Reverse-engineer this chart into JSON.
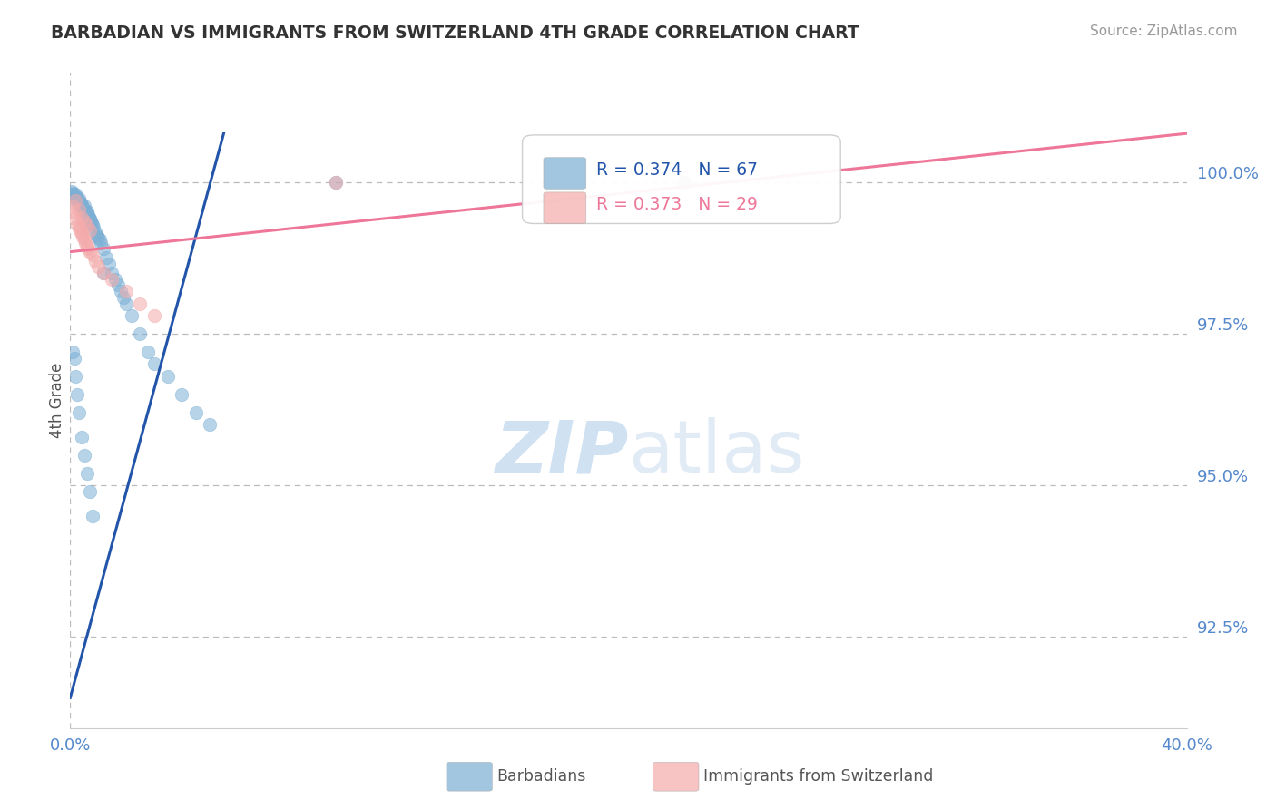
{
  "title": "BARBADIAN VS IMMIGRANTS FROM SWITZERLAND 4TH GRADE CORRELATION CHART",
  "source_text": "Source: ZipAtlas.com",
  "ylabel": "4th Grade",
  "legend_blue_r": "R = 0.374",
  "legend_blue_n": "N = 67",
  "legend_pink_r": "R = 0.373",
  "legend_pink_n": "N = 29",
  "legend_blue_label": "Barbadians",
  "legend_pink_label": "Immigrants from Switzerland",
  "xlim": [
    0.0,
    40.0
  ],
  "ylim": [
    91.0,
    101.8
  ],
  "yticks": [
    92.5,
    95.0,
    97.5,
    100.0
  ],
  "ytick_labels": [
    "92.5%",
    "95.0%",
    "97.5%",
    "100.0%"
  ],
  "xticks": [
    0.0,
    10.0,
    20.0,
    30.0,
    40.0
  ],
  "xtick_labels": [
    "0.0%",
    "",
    "",
    "",
    "40.0%"
  ],
  "blue_color": "#7BAFD4",
  "pink_color": "#F4AAAA",
  "blue_line_color": "#2255AA",
  "pink_line_color": "#EE7799",
  "watermark_color": "#C8DCF0",
  "grid_color": "#BBBBBB",
  "title_color": "#333333",
  "source_color": "#999999",
  "axis_label_color": "#555555",
  "tick_label_color": "#5588CC",
  "blue_scatter_x": [
    0.05,
    0.08,
    0.1,
    0.12,
    0.15,
    0.18,
    0.2,
    0.22,
    0.25,
    0.28,
    0.3,
    0.32,
    0.35,
    0.38,
    0.4,
    0.42,
    0.45,
    0.48,
    0.5,
    0.52,
    0.55,
    0.58,
    0.6,
    0.62,
    0.65,
    0.68,
    0.7,
    0.72,
    0.75,
    0.78,
    0.8,
    0.85,
    0.9,
    0.95,
    1.0,
    1.05,
    1.1,
    1.2,
    1.3,
    1.4,
    1.5,
    1.6,
    1.7,
    1.8,
    1.9,
    2.0,
    2.2,
    2.5,
    2.8,
    3.0,
    3.5,
    4.0,
    4.5,
    5.0,
    0.1,
    0.15,
    0.2,
    0.25,
    0.3,
    0.4,
    0.5,
    0.6,
    0.7,
    0.8,
    9.5,
    22.0,
    1.2
  ],
  "blue_scatter_y": [
    99.85,
    99.82,
    99.8,
    99.78,
    99.75,
    99.72,
    99.8,
    99.75,
    99.7,
    99.68,
    99.65,
    99.72,
    99.68,
    99.65,
    99.62,
    99.6,
    99.58,
    99.55,
    99.6,
    99.55,
    99.5,
    99.48,
    99.52,
    99.48,
    99.45,
    99.42,
    99.4,
    99.38,
    99.35,
    99.32,
    99.3,
    99.25,
    99.18,
    99.12,
    99.08,
    99.05,
    99.0,
    98.9,
    98.75,
    98.65,
    98.5,
    98.4,
    98.3,
    98.2,
    98.1,
    98.0,
    97.8,
    97.5,
    97.2,
    97.0,
    96.8,
    96.5,
    96.2,
    96.0,
    97.2,
    97.1,
    96.8,
    96.5,
    96.2,
    95.8,
    95.5,
    95.2,
    94.9,
    94.5,
    100.0,
    100.0,
    98.5
  ],
  "pink_scatter_x": [
    0.1,
    0.15,
    0.2,
    0.25,
    0.3,
    0.35,
    0.4,
    0.45,
    0.5,
    0.55,
    0.6,
    0.65,
    0.7,
    0.8,
    0.9,
    1.0,
    1.2,
    1.5,
    2.0,
    2.5,
    3.0,
    0.2,
    0.3,
    0.4,
    0.5,
    0.6,
    0.7,
    9.5,
    22.0
  ],
  "pink_scatter_y": [
    99.6,
    99.5,
    99.4,
    99.3,
    99.25,
    99.2,
    99.15,
    99.1,
    99.05,
    99.0,
    98.95,
    98.9,
    98.85,
    98.8,
    98.7,
    98.6,
    98.5,
    98.4,
    98.2,
    98.0,
    97.8,
    99.7,
    99.55,
    99.42,
    99.35,
    99.28,
    99.2,
    100.0,
    100.0
  ],
  "blue_trend": [
    0.0,
    5.5,
    91.5,
    100.8
  ],
  "pink_trend": [
    0.0,
    40.0,
    98.85,
    100.8
  ]
}
